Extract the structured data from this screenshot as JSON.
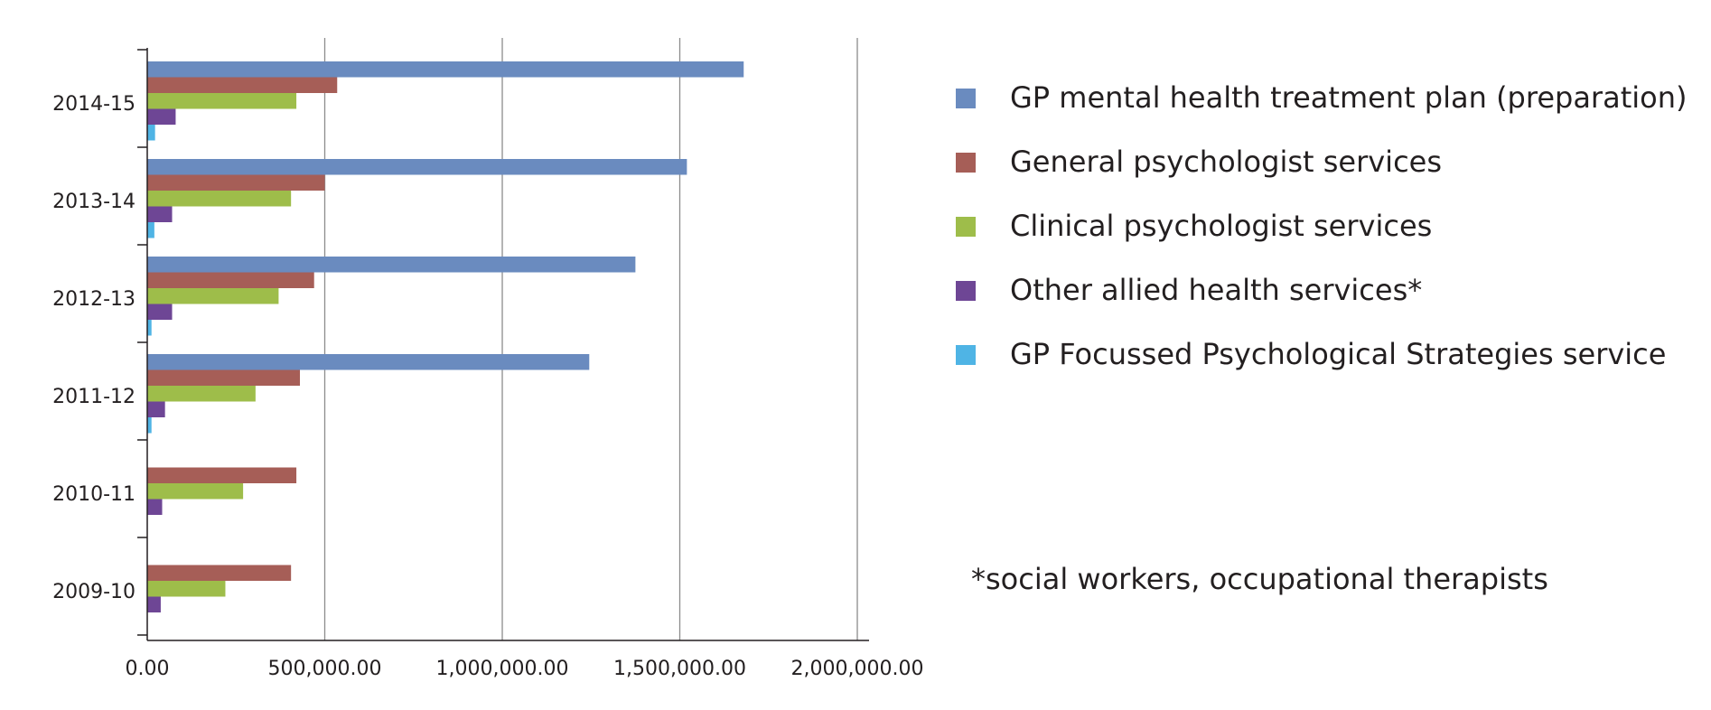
{
  "chart_data": {
    "type": "bar",
    "orientation": "horizontal",
    "categories": [
      "2014-15",
      "2013-14",
      "2012-13",
      "2011-12",
      "2010-11",
      "2009-10"
    ],
    "series": [
      {
        "name": "GP mental health treatment plan (preparation)",
        "color": "#6a8bbf",
        "values": [
          1680000,
          1520000,
          1375000,
          1245000,
          0,
          0
        ]
      },
      {
        "name": "General psychologist services",
        "color": "#a65e57",
        "values": [
          535000,
          500000,
          470000,
          430000,
          420000,
          405000
        ]
      },
      {
        "name": "Clinical psychologist services",
        "color": "#9ebd4a",
        "values": [
          420000,
          405000,
          370000,
          305000,
          270000,
          220000
        ]
      },
      {
        "name": "Other allied health services*",
        "color": "#6e4695",
        "values": [
          80000,
          70000,
          70000,
          50000,
          42000,
          38000
        ]
      },
      {
        "name": "GP Focussed Psychological Strategies service",
        "color": "#4fb4e5",
        "values": [
          22000,
          20000,
          12000,
          12000,
          0,
          0
        ]
      }
    ],
    "x_ticks": [
      "0.00",
      "500,000.00",
      "1,000,000.00",
      "1,500,000.00",
      "2,000,000.00"
    ],
    "xlim": [
      0,
      2000000
    ],
    "grid": "vertical",
    "legend": "right",
    "footnote": "*social workers, occupational therapists"
  }
}
